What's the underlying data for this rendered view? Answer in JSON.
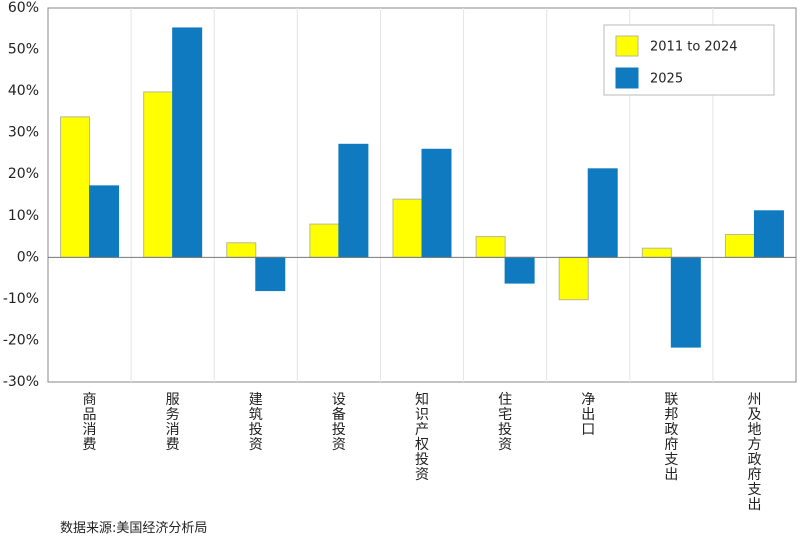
{
  "chart_data": {
    "type": "bar",
    "categories": [
      "商品消费",
      "服务消费",
      "建筑投资",
      "设备投资",
      "知识产权投资",
      "住宅投资",
      "净出口",
      "联邦政府支出",
      "州及地方政府支出"
    ],
    "series": [
      {
        "name": "2011 to 2024",
        "color": "#ffff00",
        "values": [
          33.8,
          39.8,
          3.5,
          8.0,
          14.0,
          5.0,
          -10.2,
          2.2,
          5.5
        ]
      },
      {
        "name": "2025",
        "color": "#0f7abf",
        "values": [
          17.2,
          55.2,
          -8.0,
          27.2,
          26.0,
          -6.2,
          21.3,
          -21.6,
          11.2
        ]
      }
    ],
    "ylim": [
      -30,
      60
    ],
    "yticks": [
      -30,
      -20,
      -10,
      0,
      10,
      20,
      30,
      40,
      50,
      60
    ],
    "ytick_labels": [
      "-30%",
      "-20%",
      "-10%",
      "0%",
      "10%",
      "20%",
      "30%",
      "40%",
      "50%",
      "60%"
    ],
    "legend_position": "top-right",
    "grid": "vertical",
    "source": "数据来源:美国经济分析局"
  }
}
